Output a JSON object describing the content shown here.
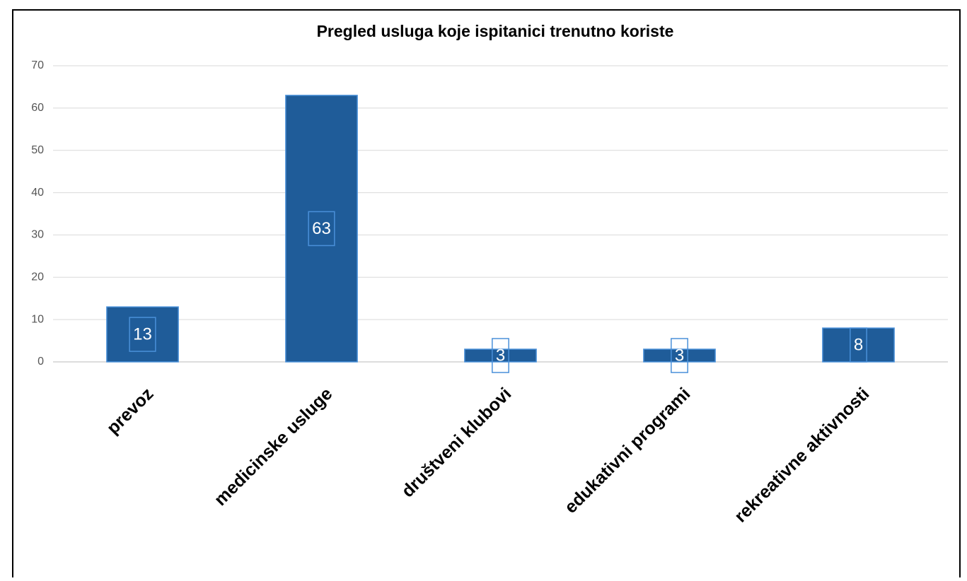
{
  "chart_data": {
    "type": "bar",
    "title": "Pregled usluga koje ispitanici trenutno koriste",
    "categories": [
      "prevoz",
      "medicinske usluge",
      "društveni klubovi",
      "edukativni programi",
      "rekreativne aktivnosti"
    ],
    "values": [
      13,
      63,
      3,
      3,
      8
    ],
    "color": "#1f5c99",
    "ylim": [
      0,
      70
    ],
    "yticks": [
      0,
      10,
      20,
      30,
      40,
      50,
      60,
      70
    ],
    "grid": true
  }
}
